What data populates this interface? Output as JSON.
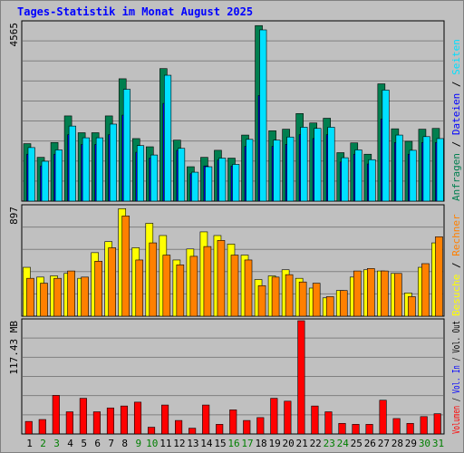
{
  "title": "Tages-Statistik im Monat August 2025",
  "days": [
    "1",
    "2",
    "3",
    "4",
    "5",
    "6",
    "7",
    "8",
    "9",
    "10",
    "11",
    "12",
    "13",
    "14",
    "15",
    "16",
    "17",
    "18",
    "19",
    "20",
    "21",
    "22",
    "23",
    "24",
    "25",
    "26",
    "27",
    "28",
    "29",
    "30",
    "31"
  ],
  "weekend_days": [
    "2",
    "3",
    "9",
    "10",
    "16",
    "17",
    "23",
    "24",
    "30",
    "31"
  ],
  "colors": {
    "background": "#c0c0c0",
    "title": "#0000ff",
    "hits": "#007f4f",
    "files": "#0000ff",
    "pages": "#00e0ff",
    "visits": "#ffff00",
    "sites": "#ff8000",
    "kbytes": "#ff0000",
    "weekday_label": "#000000",
    "weekend_label": "#007f00",
    "grid": "#808080"
  },
  "chart_data": [
    {
      "type": "bar",
      "name": "top",
      "ymax_label": "4565",
      "ymax": 4565,
      "right_labels": [
        {
          "text": "Anfragen",
          "color": "#007f4f"
        },
        {
          "text": " / ",
          "color": "#000000"
        },
        {
          "text": "Dateien",
          "color": "#0000ff"
        },
        {
          "text": " / ",
          "color": "#000000"
        },
        {
          "text": "Seiten",
          "color": "#00e0ff"
        }
      ],
      "series": [
        {
          "name": "Anfragen",
          "values": [
            1470,
            1120,
            1500,
            2180,
            1750,
            1750,
            2180,
            3130,
            1600,
            1390,
            3390,
            1560,
            880,
            1120,
            1300,
            1100,
            1690,
            4490,
            1800,
            1840,
            2240,
            2000,
            2120,
            1240,
            1490,
            1200,
            3000,
            1850,
            1530,
            1840,
            1860
          ]
        },
        {
          "name": "Dateien",
          "values": [
            1200,
            900,
            1200,
            1700,
            1450,
            1450,
            1700,
            2200,
            1250,
            1100,
            2500,
            1300,
            700,
            900,
            1050,
            900,
            1400,
            2700,
            1400,
            1450,
            1700,
            1600,
            1700,
            1000,
            1200,
            950,
            2100,
            1500,
            1200,
            1500,
            1500
          ]
        },
        {
          "name": "Seiten",
          "values": [
            1370,
            1020,
            1310,
            1920,
            1620,
            1620,
            1970,
            2860,
            1420,
            1180,
            3220,
            1350,
            740,
            880,
            1100,
            940,
            1580,
            4380,
            1560,
            1640,
            1890,
            1860,
            1890,
            1110,
            1310,
            1060,
            2840,
            1690,
            1300,
            1650,
            1600
          ]
        }
      ]
    },
    {
      "type": "bar",
      "name": "middle",
      "ymax_label": "897",
      "ymax": 897,
      "right_labels": [
        {
          "text": "Besuche",
          "color": "#ffff00"
        },
        {
          "text": " / ",
          "color": "#000000"
        },
        {
          "text": "Rechner",
          "color": "#ff8000"
        }
      ],
      "series": [
        {
          "name": "Besuche",
          "values": [
            400,
            320,
            330,
            350,
            310,
            520,
            610,
            880,
            560,
            760,
            660,
            460,
            550,
            690,
            660,
            590,
            500,
            300,
            330,
            380,
            310,
            230,
            150,
            210,
            320,
            380,
            370,
            350,
            190,
            400,
            600
          ]
        },
        {
          "name": "Rechner",
          "values": [
            310,
            270,
            310,
            370,
            320,
            450,
            560,
            820,
            460,
            600,
            500,
            420,
            490,
            570,
            620,
            500,
            460,
            250,
            320,
            340,
            280,
            270,
            160,
            210,
            370,
            390,
            370,
            350,
            160,
            430,
            650
          ]
        }
      ]
    },
    {
      "type": "bar",
      "name": "bottom",
      "ymax_label": "117.43 MB",
      "ymax": 117.43,
      "right_labels": [
        {
          "text": "Volumen",
          "color": "#ff0000"
        },
        {
          "text": " / ",
          "color": "#000000"
        },
        {
          "text": "Vol. In",
          "color": "#0000ff"
        },
        {
          "text": " / ",
          "color": "#000000"
        },
        {
          "text": "Vol. Out",
          "color": "#000000"
        }
      ],
      "series": [
        {
          "name": "Volumen",
          "values": [
            13,
            15,
            40,
            23,
            37,
            23,
            27,
            29,
            33,
            7,
            30,
            14,
            6,
            30,
            10,
            25,
            14,
            17,
            37,
            34,
            118,
            29,
            23,
            11,
            10,
            10,
            35,
            16,
            11,
            18,
            21
          ]
        }
      ]
    }
  ]
}
